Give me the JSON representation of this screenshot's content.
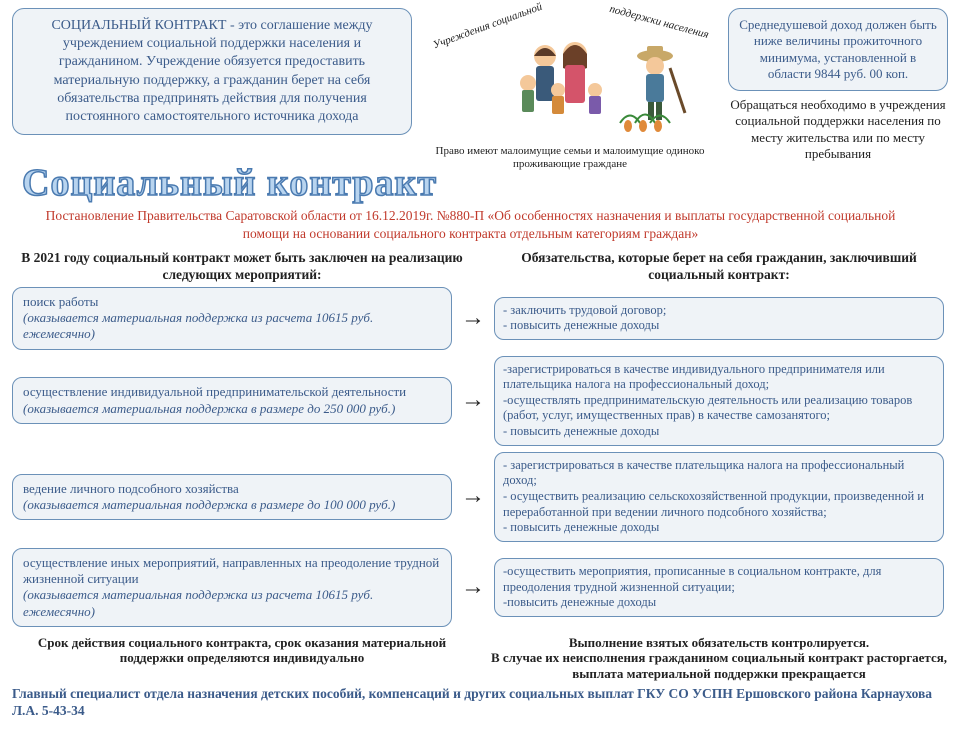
{
  "colors": {
    "box_border": "#6b91b8",
    "box_bg": "#eff3f7",
    "text_blue": "#3b5b8a",
    "text_red": "#c0392b",
    "text_black": "#222222",
    "title_fill": "#b8d4ef",
    "title_stroke": "#4a7ab0"
  },
  "definition": "СОЦИАЛЬНЫЙ КОНТРАКТ - это соглашение между учреждением социальной поддержки населения и гражданином. Учреждение обязуется предоставить материальную поддержку, а гражданин берет на себя обязательства предпринять действия для получения постоянного самостоятельного источника дохода",
  "arc_left": "Учреждения социальной",
  "arc_right": "поддержки населения",
  "image_caption": "Право имеют малоимущие семьи и малоимущие одиноко проживающие граждане",
  "income_box": "Среднедушевой доход должен быть ниже величины прожиточного минимума, установленной в области 9844 руб. 00 коп.",
  "appeal_text": "Обращаться необходимо в учреждения социальной поддержки населения по месту жительства или по месту пребывания",
  "title": "Социальный контракт",
  "decree": "Постановление Правительства Саратовской области от 16.12.2019г. №880-П «Об особенностях назначения и выплаты государственной социальной помощи на основании социального контракта отдельным категориям граждан»",
  "left_header": "В 2021 году социальный контракт может быть заключен на реализацию следующих мероприятий:",
  "right_header": "Обязательства, которые берет на себя гражданин, заключивший социальный контракт:",
  "rows": [
    {
      "activity_title": "поиск работы",
      "activity_note": "(оказывается материальная поддержка из расчета 10615 руб. ежемесячно)",
      "obligation": "- заключить трудовой договор;\n- повысить денежные доходы"
    },
    {
      "activity_title": "осуществление индивидуальной предпринимательской деятельности",
      "activity_note": "(оказывается материальная поддержка в размере до 250 000 руб.)",
      "obligation": "-зарегистрироваться в качестве индивидуального предпринимателя или плательщика налога на профессиональный доход;\n-осуществлять предпринимательскую деятельность или реализацию товаров (работ, услуг, имущественных прав) в качестве самозанятого;\n- повысить денежные доходы"
    },
    {
      "activity_title": "ведение личного подсобного хозяйства",
      "activity_note": "(оказывается материальная поддержка в размере до 100 000 руб.)",
      "obligation": "- зарегистрироваться в качестве плательщика налога на профессиональный доход;\n- осуществить реализацию сельскохозяйственной продукции, произведенной и переработанной при ведении личного подсобного хозяйства;\n- повысить денежные доходы"
    },
    {
      "activity_title": "осуществление иных мероприятий, направленных на преодоление трудной жизненной ситуации",
      "activity_note": "(оказывается материальная поддержка из расчета 10615 руб. ежемесячно)",
      "obligation": "-осуществить мероприятия, прописанные в социальном контракте, для преодоления трудной жизненной ситуации;\n-повысить денежные доходы"
    }
  ],
  "left_footer": "Срок действия социального контракта, срок оказания материальной поддержки определяются индивидуально",
  "right_footer": "Выполнение взятых обязательств контролируется.\nВ случае их неисполнения гражданином социальный контракт расторгается, выплата материальной поддержки прекращается",
  "contact": "Главный специалист отдела назначения детских пособий, компенсаций и других социальных выплат ГКУ СО УСПН Ершовского района Карнаухова Л.А. 5-43-34"
}
